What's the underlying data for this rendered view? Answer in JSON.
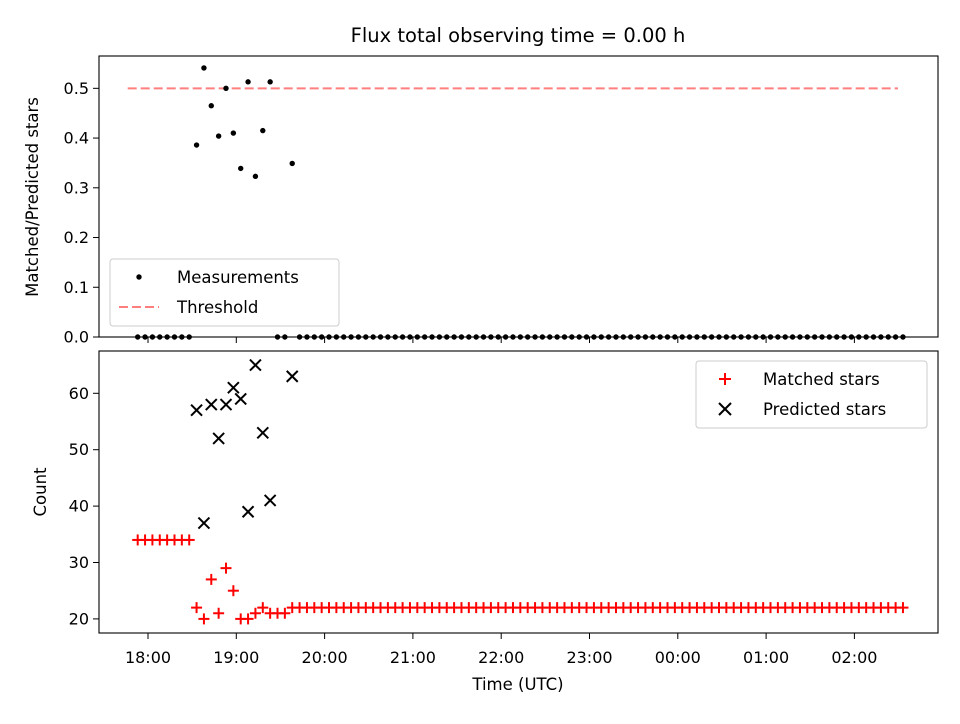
{
  "chart_data": {
    "type": "scatter",
    "title": "Flux total observing time = 0.00 h",
    "xlabel": "Time (UTC)",
    "x_ticks": [
      "18:00",
      "19:00",
      "20:00",
      "21:00",
      "22:00",
      "23:00",
      "00:00",
      "01:00",
      "02:00"
    ],
    "top": {
      "ylabel": "Matched/Predicted stars",
      "ylim": [
        0,
        0.565
      ],
      "y_ticks": [
        "0.0",
        "0.1",
        "0.2",
        "0.3",
        "0.4",
        "0.5"
      ],
      "threshold": 0.5,
      "legend": {
        "placement": "lower-left",
        "entries": [
          "Measurements",
          "Threshold"
        ]
      },
      "colors": {
        "measurements": "#000000",
        "threshold": "#ff7f7f"
      },
      "measurements": {
        "x": [
          "17:53",
          "17:58",
          "18:03",
          "18:08",
          "18:13",
          "18:18",
          "18:23",
          "18:28",
          "18:33",
          "18:38",
          "18:43",
          "18:48",
          "18:53",
          "18:58",
          "19:03",
          "19:08",
          "19:13",
          "19:18",
          "19:23",
          "19:28",
          "19:33",
          "19:38",
          "19:43",
          "19:48",
          "19:53",
          "19:58",
          "20:03",
          "20:08",
          "20:13",
          "20:18",
          "20:23",
          "20:28",
          "20:33",
          "20:38",
          "20:43",
          "20:48",
          "20:53",
          "20:58",
          "21:03",
          "21:08",
          "21:13",
          "21:18",
          "21:23",
          "21:28",
          "21:33",
          "21:38",
          "21:43",
          "21:48",
          "21:53",
          "21:58",
          "22:03",
          "22:08",
          "22:13",
          "22:18",
          "22:23",
          "22:28",
          "22:33",
          "22:38",
          "22:43",
          "22:48",
          "22:53",
          "22:58",
          "23:03",
          "23:08",
          "23:13",
          "23:18",
          "23:23",
          "23:28",
          "23:33",
          "23:38",
          "23:43",
          "23:48",
          "23:53",
          "23:58",
          "00:03",
          "00:08",
          "00:13",
          "00:18",
          "00:23",
          "00:28",
          "00:33",
          "00:38",
          "00:43",
          "00:48",
          "00:53",
          "00:58",
          "01:03",
          "01:08",
          "01:13",
          "01:18",
          "01:23",
          "01:28",
          "01:33",
          "01:38",
          "01:43",
          "01:48",
          "01:53",
          "01:58",
          "02:03",
          "02:08",
          "02:13",
          "02:18",
          "02:23",
          "02:28",
          "02:33"
        ],
        "y": [
          0,
          0,
          0,
          0,
          0,
          0,
          0,
          0,
          0.386,
          0.541,
          0.465,
          0.404,
          0.5,
          0.41,
          0.339,
          0.513,
          0.323,
          0.415,
          0.513,
          0,
          0,
          0.349,
          0,
          0,
          0,
          0,
          0,
          0,
          0,
          0,
          0,
          0,
          0,
          0,
          0,
          0,
          0,
          0,
          0,
          0,
          0,
          0,
          0,
          0,
          0,
          0,
          0,
          0,
          0,
          0,
          0,
          0,
          0,
          0,
          0,
          0,
          0,
          0,
          0,
          0,
          0,
          0,
          0,
          0,
          0,
          0,
          0,
          0,
          0,
          0,
          0,
          0,
          0,
          0,
          0,
          0,
          0,
          0,
          0,
          0,
          0,
          0,
          0,
          0,
          0,
          0,
          0,
          0,
          0,
          0,
          0,
          0,
          0,
          0,
          0,
          0,
          0,
          0,
          0,
          0,
          0,
          0,
          0,
          0,
          0
        ]
      }
    },
    "bottom": {
      "ylabel": "Count",
      "ylim": [
        17.5,
        67.5
      ],
      "y_ticks": [
        "20",
        "30",
        "40",
        "50",
        "60"
      ],
      "legend": {
        "placement": "upper-right",
        "entries": [
          "Matched stars",
          "Predicted stars"
        ]
      },
      "colors": {
        "matched": "#ff0000",
        "predicted": "#000000"
      },
      "matched": {
        "x": [
          "17:53",
          "17:58",
          "18:03",
          "18:08",
          "18:13",
          "18:18",
          "18:23",
          "18:28",
          "18:33",
          "18:38",
          "18:43",
          "18:48",
          "18:53",
          "18:58",
          "19:03",
          "19:08",
          "19:13",
          "19:18",
          "19:23",
          "19:28",
          "19:33",
          "19:38",
          "19:43",
          "19:48",
          "19:53",
          "19:58",
          "20:03",
          "20:08",
          "20:13",
          "20:18",
          "20:23",
          "20:28",
          "20:33",
          "20:38",
          "20:43",
          "20:48",
          "20:53",
          "20:58",
          "21:03",
          "21:08",
          "21:13",
          "21:18",
          "21:23",
          "21:28",
          "21:33",
          "21:38",
          "21:43",
          "21:48",
          "21:53",
          "21:58",
          "22:03",
          "22:08",
          "22:13",
          "22:18",
          "22:23",
          "22:28",
          "22:33",
          "22:38",
          "22:43",
          "22:48",
          "22:53",
          "22:58",
          "23:03",
          "23:08",
          "23:13",
          "23:18",
          "23:23",
          "23:28",
          "23:33",
          "23:38",
          "23:43",
          "23:48",
          "23:53",
          "23:58",
          "00:03",
          "00:08",
          "00:13",
          "00:18",
          "00:23",
          "00:28",
          "00:33",
          "00:38",
          "00:43",
          "00:48",
          "00:53",
          "00:58",
          "01:03",
          "01:08",
          "01:13",
          "01:18",
          "01:23",
          "01:28",
          "01:33",
          "01:38",
          "01:43",
          "01:48",
          "01:53",
          "01:58",
          "02:03",
          "02:08",
          "02:13",
          "02:18",
          "02:23",
          "02:28",
          "02:33"
        ],
        "y": [
          34,
          34,
          34,
          34,
          34,
          34,
          34,
          34,
          22,
          20,
          27,
          21,
          29,
          25,
          20,
          20,
          21,
          22,
          21,
          21,
          21,
          22,
          22,
          22,
          22,
          22,
          22,
          22,
          22,
          22,
          22,
          22,
          22,
          22,
          22,
          22,
          22,
          22,
          22,
          22,
          22,
          22,
          22,
          22,
          22,
          22,
          22,
          22,
          22,
          22,
          22,
          22,
          22,
          22,
          22,
          22,
          22,
          22,
          22,
          22,
          22,
          22,
          22,
          22,
          22,
          22,
          22,
          22,
          22,
          22,
          22,
          22,
          22,
          22,
          22,
          22,
          22,
          22,
          22,
          22,
          22,
          22,
          22,
          22,
          22,
          22,
          22,
          22,
          22,
          22,
          22,
          22,
          22,
          22,
          22,
          22,
          22,
          22,
          22,
          22,
          22,
          22,
          22,
          22,
          22
        ]
      },
      "predicted": {
        "x": [
          "18:33",
          "18:38",
          "18:43",
          "18:48",
          "18:53",
          "18:58",
          "19:03",
          "19:08",
          "19:13",
          "19:18",
          "19:23",
          "19:38"
        ],
        "y": [
          57,
          37,
          58,
          52,
          58,
          61,
          59,
          39,
          65,
          53,
          41,
          63
        ]
      }
    }
  }
}
